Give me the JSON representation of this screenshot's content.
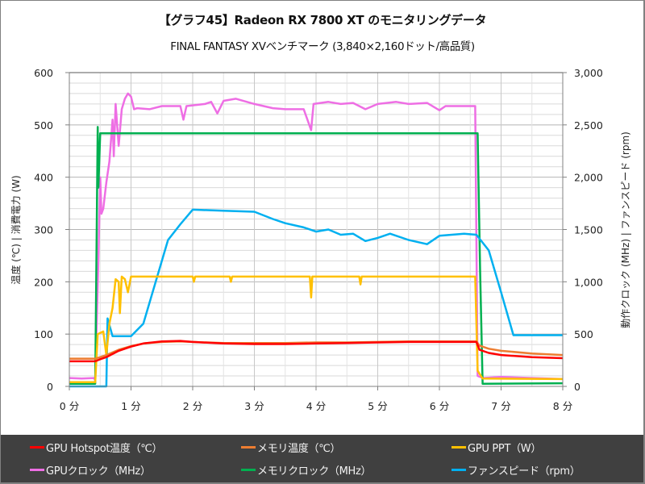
{
  "title": "【グラフ45】Radeon RX 7800 XT のモニタリングデータ",
  "subtitle": "FINAL FANTASY XVベンチマーク (3,840×2,160ドット/高品質)",
  "chart_data": {
    "type": "line",
    "title": "【グラフ45】Radeon RX 7800 XT のモニタリングデータ",
    "subtitle": "FINAL FANTASY XVベンチマーク (3,840×2,160ドット/高品質)",
    "xlabel": "",
    "ylabel_left": "温度 (℃) | 消費電力 (W)",
    "ylabel_right": "動作クロック (MHz) | ファンスピード (rpm)",
    "x_ticks": [
      "0 分",
      "1 分",
      "2 分",
      "3 分",
      "4 分",
      "5 分",
      "6 分",
      "7 分",
      "8 分"
    ],
    "y_left_ticks": [
      "0",
      "100",
      "200",
      "300",
      "400",
      "500",
      "600"
    ],
    "y_right_ticks": [
      "0",
      "500",
      "1,000",
      "1,500",
      "2,000",
      "2,500",
      "3,000"
    ],
    "xlim": [
      0,
      8
    ],
    "ylim_left": [
      0,
      600
    ],
    "ylim_right": [
      0,
      3000
    ],
    "grid": true,
    "legend_position": "bottom",
    "series": [
      {
        "name": "GPU Hotspot温度（℃）",
        "axis": "left",
        "color": "#ff0000",
        "points": [
          [
            0,
            48
          ],
          [
            0.42,
            48
          ],
          [
            0.5,
            52
          ],
          [
            0.6,
            56
          ],
          [
            0.8,
            68
          ],
          [
            1.0,
            76
          ],
          [
            1.2,
            82
          ],
          [
            1.5,
            86
          ],
          [
            1.8,
            87
          ],
          [
            2.0,
            85
          ],
          [
            2.5,
            82
          ],
          [
            3.0,
            81
          ],
          [
            3.5,
            81
          ],
          [
            4.0,
            82
          ],
          [
            4.5,
            83
          ],
          [
            5.0,
            84
          ],
          [
            5.5,
            85
          ],
          [
            6.0,
            85
          ],
          [
            6.6,
            85
          ],
          [
            6.65,
            70
          ],
          [
            6.8,
            64
          ],
          [
            7.0,
            60
          ],
          [
            7.5,
            56
          ],
          [
            8.0,
            54
          ]
        ]
      },
      {
        "name": "メモリ温度（℃）",
        "axis": "left",
        "color": "#ed7d31",
        "points": [
          [
            0,
            53
          ],
          [
            0.42,
            53
          ],
          [
            0.5,
            56
          ],
          [
            0.6,
            60
          ],
          [
            0.8,
            70
          ],
          [
            1.0,
            77
          ],
          [
            1.2,
            82
          ],
          [
            1.5,
            85
          ],
          [
            1.8,
            86
          ],
          [
            2.0,
            85
          ],
          [
            2.5,
            83
          ],
          [
            3.0,
            83
          ],
          [
            3.5,
            83
          ],
          [
            4.0,
            84
          ],
          [
            4.5,
            84
          ],
          [
            5.0,
            85
          ],
          [
            5.5,
            86
          ],
          [
            6.0,
            86
          ],
          [
            6.6,
            86
          ],
          [
            6.65,
            78
          ],
          [
            6.8,
            72
          ],
          [
            7.0,
            68
          ],
          [
            7.5,
            63
          ],
          [
            8.0,
            60
          ]
        ]
      },
      {
        "name": "GPU PPT（W）",
        "axis": "left",
        "color": "#ffc000",
        "points": [
          [
            0,
            8
          ],
          [
            0.42,
            8
          ],
          [
            0.46,
            100
          ],
          [
            0.55,
            105
          ],
          [
            0.6,
            60
          ],
          [
            0.65,
            120
          ],
          [
            0.7,
            150
          ],
          [
            0.75,
            205
          ],
          [
            0.8,
            200
          ],
          [
            0.82,
            140
          ],
          [
            0.85,
            210
          ],
          [
            0.9,
            205
          ],
          [
            0.95,
            180
          ],
          [
            1.0,
            210
          ],
          [
            2.0,
            210
          ],
          [
            2.02,
            200
          ],
          [
            2.04,
            210
          ],
          [
            2.6,
            210
          ],
          [
            2.62,
            200
          ],
          [
            2.64,
            210
          ],
          [
            3.9,
            210
          ],
          [
            3.92,
            170
          ],
          [
            3.94,
            210
          ],
          [
            4.7,
            210
          ],
          [
            4.72,
            195
          ],
          [
            4.74,
            210
          ],
          [
            6.58,
            210
          ],
          [
            6.62,
            30
          ],
          [
            6.7,
            15
          ],
          [
            8.0,
            14
          ]
        ]
      },
      {
        "name": "GPUクロック（MHz）",
        "axis": "right",
        "color": "#ee6ee4",
        "points": [
          [
            0,
            80
          ],
          [
            0.2,
            75
          ],
          [
            0.4,
            80
          ],
          [
            0.42,
            60
          ],
          [
            0.47,
            1200
          ],
          [
            0.5,
            2000
          ],
          [
            0.52,
            1650
          ],
          [
            0.55,
            1700
          ],
          [
            0.6,
            1950
          ],
          [
            0.65,
            2150
          ],
          [
            0.7,
            2550
          ],
          [
            0.72,
            2200
          ],
          [
            0.75,
            2700
          ],
          [
            0.8,
            2300
          ],
          [
            0.85,
            2650
          ],
          [
            0.9,
            2750
          ],
          [
            0.95,
            2800
          ],
          [
            1.0,
            2770
          ],
          [
            1.05,
            2650
          ],
          [
            1.1,
            2660
          ],
          [
            1.3,
            2650
          ],
          [
            1.5,
            2680
          ],
          [
            1.8,
            2680
          ],
          [
            1.85,
            2550
          ],
          [
            1.9,
            2680
          ],
          [
            2.2,
            2700
          ],
          [
            2.3,
            2720
          ],
          [
            2.4,
            2610
          ],
          [
            2.5,
            2730
          ],
          [
            2.7,
            2750
          ],
          [
            3.0,
            2700
          ],
          [
            3.3,
            2660
          ],
          [
            3.5,
            2650
          ],
          [
            3.8,
            2650
          ],
          [
            3.92,
            2450
          ],
          [
            3.96,
            2700
          ],
          [
            4.2,
            2720
          ],
          [
            4.4,
            2700
          ],
          [
            4.6,
            2710
          ],
          [
            4.8,
            2650
          ],
          [
            5.0,
            2700
          ],
          [
            5.3,
            2720
          ],
          [
            5.5,
            2700
          ],
          [
            5.8,
            2710
          ],
          [
            6.0,
            2640
          ],
          [
            6.1,
            2680
          ],
          [
            6.58,
            2680
          ],
          [
            6.62,
            100
          ],
          [
            6.7,
            80
          ],
          [
            7.0,
            90
          ],
          [
            7.5,
            80
          ],
          [
            8.0,
            70
          ]
        ]
      },
      {
        "name": "メモリクロック（MHz）",
        "axis": "right",
        "color": "#00b050",
        "points": [
          [
            0,
            25
          ],
          [
            0.42,
            25
          ],
          [
            0.46,
            2480
          ],
          [
            0.47,
            1900
          ],
          [
            0.5,
            2420
          ],
          [
            6.62,
            2420
          ],
          [
            6.66,
            1100
          ],
          [
            6.7,
            25
          ],
          [
            8.0,
            30
          ]
        ]
      },
      {
        "name": "ファンスピード（rpm）",
        "axis": "right",
        "color": "#00b0f0",
        "points": [
          [
            0,
            0
          ],
          [
            0.6,
            0
          ],
          [
            0.62,
            650
          ],
          [
            0.7,
            480
          ],
          [
            1.0,
            480
          ],
          [
            1.2,
            600
          ],
          [
            1.4,
            1000
          ],
          [
            1.6,
            1400
          ],
          [
            1.8,
            1550
          ],
          [
            2.0,
            1690
          ],
          [
            2.5,
            1680
          ],
          [
            3.0,
            1670
          ],
          [
            3.3,
            1600
          ],
          [
            3.5,
            1560
          ],
          [
            3.8,
            1520
          ],
          [
            4.0,
            1480
          ],
          [
            4.2,
            1500
          ],
          [
            4.4,
            1450
          ],
          [
            4.6,
            1460
          ],
          [
            4.8,
            1390
          ],
          [
            5.0,
            1420
          ],
          [
            5.2,
            1460
          ],
          [
            5.5,
            1400
          ],
          [
            5.8,
            1360
          ],
          [
            6.0,
            1440
          ],
          [
            6.4,
            1460
          ],
          [
            6.6,
            1450
          ],
          [
            6.8,
            1300
          ],
          [
            7.0,
            900
          ],
          [
            7.2,
            490
          ],
          [
            8.0,
            490
          ]
        ]
      }
    ]
  },
  "legend": {
    "items": [
      {
        "label": "GPU Hotspot温度（℃）",
        "color": "#ff0000"
      },
      {
        "label": "メモリ温度（℃）",
        "color": "#ed7d31"
      },
      {
        "label": "GPU PPT（W）",
        "color": "#ffc000"
      },
      {
        "label": "GPUクロック（MHz）",
        "color": "#ee6ee4"
      },
      {
        "label": "メモリクロック（MHz）",
        "color": "#00b050"
      },
      {
        "label": "ファンスピード（rpm）",
        "color": "#00b0f0"
      }
    ]
  }
}
